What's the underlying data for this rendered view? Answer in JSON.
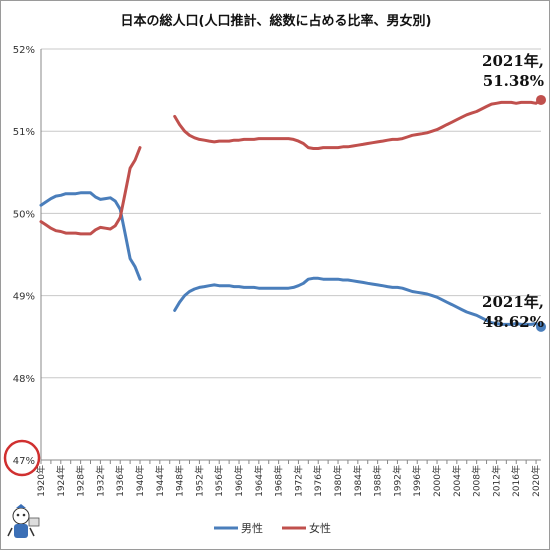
{
  "chart_data": {
    "type": "line",
    "title": "日本の総人口(人口推計、総数に占める比率、男女別)",
    "ylim": [
      47,
      52
    ],
    "y_ticks": [
      47,
      48,
      49,
      50,
      51,
      52
    ],
    "y_tick_labels": [
      "47%",
      "48%",
      "49%",
      "50%",
      "51%",
      "52%"
    ],
    "x_range": [
      1920,
      2021
    ],
    "x_ticks": [
      1920,
      1924,
      1928,
      1932,
      1936,
      1940,
      1944,
      1948,
      1952,
      1956,
      1960,
      1964,
      1968,
      1972,
      1976,
      1980,
      1984,
      1988,
      1992,
      1996,
      2000,
      2004,
      2008,
      2012,
      2016,
      2020
    ],
    "x_tick_labels": [
      "1920年",
      "1924年",
      "1928年",
      "1932年",
      "1936年",
      "1940年",
      "1944年",
      "1948年",
      "1952年",
      "1956年",
      "1960年",
      "1964年",
      "1968年",
      "1972年",
      "1976年",
      "1980年",
      "1984年",
      "1988年",
      "1992年",
      "1996年",
      "2000年",
      "2004年",
      "2008年",
      "2012年",
      "2016年",
      "2020年"
    ],
    "grid": "horizontal",
    "legend_position": "bottom",
    "series": [
      {
        "name": "男性",
        "color": "#4a7ebb",
        "segments": [
          {
            "x": [
              1920,
              1921,
              1922,
              1923,
              1924,
              1925,
              1926,
              1927,
              1928,
              1929,
              1930,
              1931,
              1932,
              1933,
              1934,
              1935,
              1936,
              1937,
              1938,
              1939,
              1940
            ],
            "y": [
              50.1,
              50.14,
              50.18,
              50.21,
              50.22,
              50.24,
              50.24,
              50.24,
              50.25,
              50.25,
              50.25,
              50.2,
              50.17,
              50.18,
              50.19,
              50.15,
              50.05,
              49.75,
              49.45,
              49.35,
              49.2
            ]
          },
          {
            "x": [
              1947,
              1948,
              1949,
              1950,
              1951,
              1952,
              1953,
              1954,
              1955,
              1956,
              1957,
              1958,
              1959,
              1960,
              1961,
              1962,
              1963,
              1964,
              1965,
              1966,
              1967,
              1968,
              1969,
              1970,
              1971,
              1972,
              1973,
              1974,
              1975,
              1976,
              1977,
              1978,
              1979,
              1980,
              1981,
              1982,
              1983,
              1984,
              1985,
              1986,
              1987,
              1988,
              1989,
              1990,
              1991,
              1992,
              1993,
              1994,
              1995,
              1996,
              1997,
              1998,
              1999,
              2000,
              2001,
              2002,
              2003,
              2004,
              2005,
              2006,
              2007,
              2008,
              2009,
              2010,
              2011,
              2012,
              2013,
              2014,
              2015,
              2016,
              2017,
              2018,
              2019,
              2020,
              2021
            ],
            "y": [
              48.82,
              48.92,
              49.0,
              49.05,
              49.08,
              49.1,
              49.11,
              49.12,
              49.13,
              49.12,
              49.12,
              49.12,
              49.11,
              49.11,
              49.1,
              49.1,
              49.1,
              49.09,
              49.09,
              49.09,
              49.09,
              49.09,
              49.09,
              49.09,
              49.1,
              49.12,
              49.15,
              49.2,
              49.21,
              49.21,
              49.2,
              49.2,
              49.2,
              49.2,
              49.19,
              49.19,
              49.18,
              49.17,
              49.16,
              49.15,
              49.14,
              49.13,
              49.12,
              49.11,
              49.1,
              49.1,
              49.09,
              49.07,
              49.05,
              49.04,
              49.03,
              49.02,
              49.0,
              48.98,
              48.95,
              48.92,
              48.89,
              48.86,
              48.83,
              48.8,
              48.78,
              48.76,
              48.73,
              48.7,
              48.67,
              48.66,
              48.65,
              48.65,
              48.65,
              48.66,
              48.65,
              48.65,
              48.65,
              48.66,
              48.62
            ]
          }
        ],
        "end_label": "2021年,\n48.62%"
      },
      {
        "name": "女性",
        "color": "#c0504d",
        "segments": [
          {
            "x": [
              1920,
              1921,
              1922,
              1923,
              1924,
              1925,
              1926,
              1927,
              1928,
              1929,
              1930,
              1931,
              1932,
              1933,
              1934,
              1935,
              1936,
              1937,
              1938,
              1939,
              1940
            ],
            "y": [
              49.9,
              49.86,
              49.82,
              49.79,
              49.78,
              49.76,
              49.76,
              49.76,
              49.75,
              49.75,
              49.75,
              49.8,
              49.83,
              49.82,
              49.81,
              49.85,
              49.95,
              50.25,
              50.55,
              50.65,
              50.8
            ]
          },
          {
            "x": [
              1947,
              1948,
              1949,
              1950,
              1951,
              1952,
              1953,
              1954,
              1955,
              1956,
              1957,
              1958,
              1959,
              1960,
              1961,
              1962,
              1963,
              1964,
              1965,
              1966,
              1967,
              1968,
              1969,
              1970,
              1971,
              1972,
              1973,
              1974,
              1975,
              1976,
              1977,
              1978,
              1979,
              1980,
              1981,
              1982,
              1983,
              1984,
              1985,
              1986,
              1987,
              1988,
              1989,
              1990,
              1991,
              1992,
              1993,
              1994,
              1995,
              1996,
              1997,
              1998,
              1999,
              2000,
              2001,
              2002,
              2003,
              2004,
              2005,
              2006,
              2007,
              2008,
              2009,
              2010,
              2011,
              2012,
              2013,
              2014,
              2015,
              2016,
              2017,
              2018,
              2019,
              2020,
              2021
            ],
            "y": [
              51.18,
              51.08,
              51.0,
              50.95,
              50.92,
              50.9,
              50.89,
              50.88,
              50.87,
              50.88,
              50.88,
              50.88,
              50.89,
              50.89,
              50.9,
              50.9,
              50.9,
              50.91,
              50.91,
              50.91,
              50.91,
              50.91,
              50.91,
              50.91,
              50.9,
              50.88,
              50.85,
              50.8,
              50.79,
              50.79,
              50.8,
              50.8,
              50.8,
              50.8,
              50.81,
              50.81,
              50.82,
              50.83,
              50.84,
              50.85,
              50.86,
              50.87,
              50.88,
              50.89,
              50.9,
              50.9,
              50.91,
              50.93,
              50.95,
              50.96,
              50.97,
              50.98,
              51.0,
              51.02,
              51.05,
              51.08,
              51.11,
              51.14,
              51.17,
              51.2,
              51.22,
              51.24,
              51.27,
              51.3,
              51.33,
              51.34,
              51.35,
              51.35,
              51.35,
              51.34,
              51.35,
              51.35,
              51.35,
              51.34,
              51.38
            ]
          }
        ],
        "end_label": "2021年,\n51.38%"
      }
    ]
  }
}
